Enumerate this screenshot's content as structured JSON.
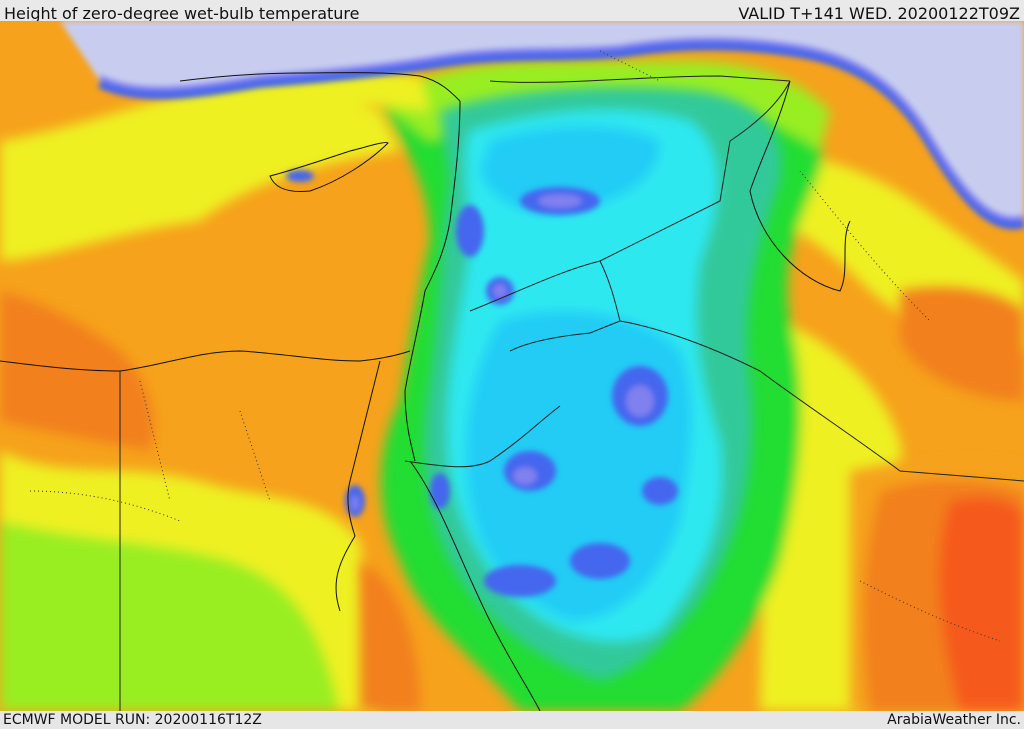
{
  "header": {
    "title": "Height of zero-degree wet-bulb temperature",
    "valid_time": "VALID T+141 WED. 20200122T09Z"
  },
  "footer": {
    "model_run": "ECMWF MODEL RUN: 20200116T12Z",
    "credit": "ArabiaWeather Inc."
  },
  "colors": {
    "very_low": "#c8cdf0",
    "low_blue": "#4466ee",
    "mid_blue": "#8080ee",
    "light_blue": "#22ccf5",
    "cyan": "#2ee8f0",
    "teal": "#33c99a",
    "green": "#22dd33",
    "yellow_green": "#99ee22",
    "yellow": "#eef020",
    "orange": "#f6a21c",
    "dark_orange": "#f2801f",
    "red_orange": "#f55a1e"
  }
}
